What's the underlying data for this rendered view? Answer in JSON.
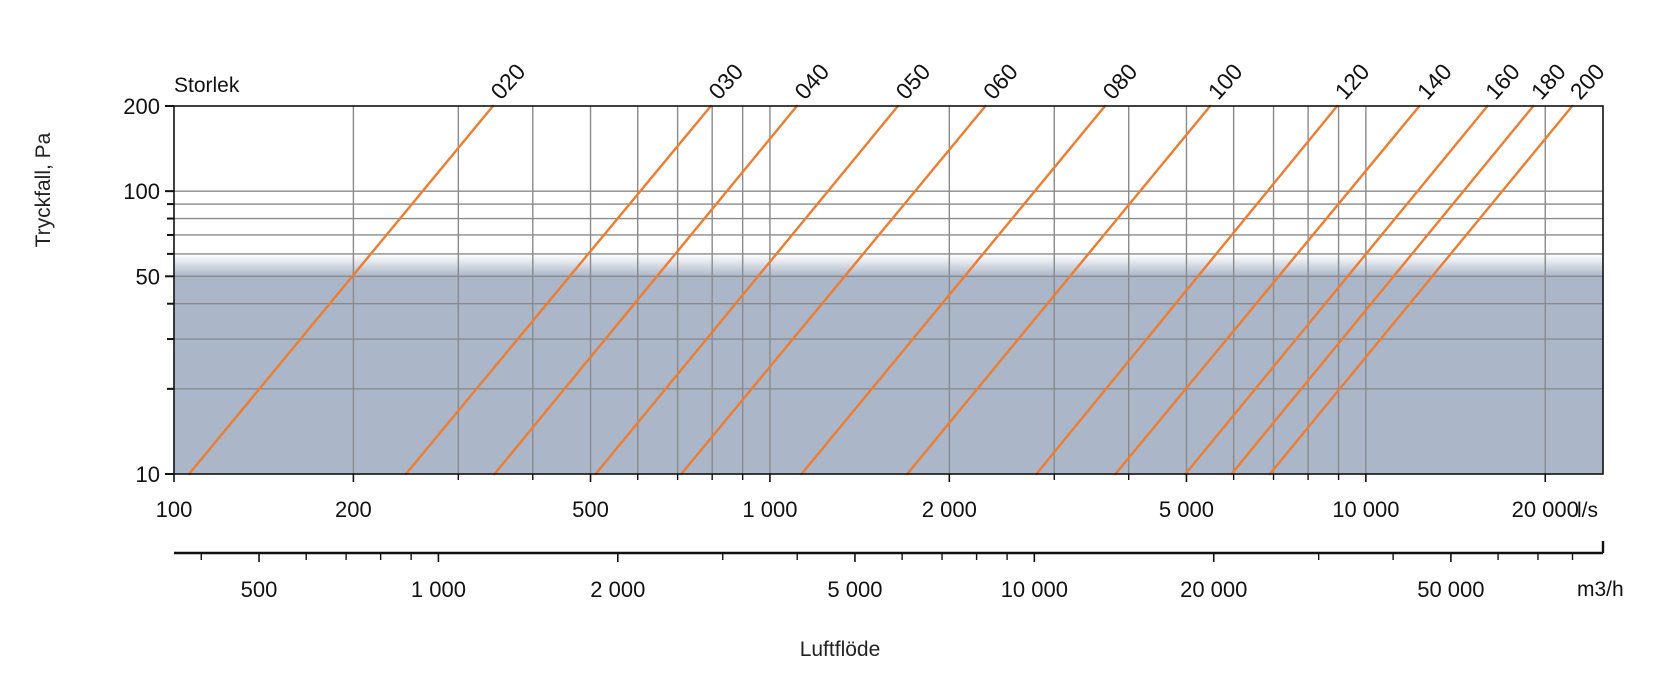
{
  "chart_data": {
    "type": "line",
    "x_scale": "log",
    "y_scale": "log",
    "xlim": [
      100,
      25000
    ],
    "ylim": [
      10,
      200
    ],
    "legend_title": "Storlek",
    "ylabel": "Tryckfall, Pa",
    "xlabel": "Luftflöde",
    "x_unit": "l/s",
    "x2_unit": "m3/h",
    "y_ticks": [
      10,
      50,
      100,
      200
    ],
    "y_tick_labels": [
      "10",
      "50",
      "100",
      "200"
    ],
    "y_minor_ticks": [
      20,
      30,
      40,
      60,
      70,
      80,
      90
    ],
    "x_ticks": [
      100,
      200,
      500,
      1000,
      2000,
      5000,
      10000,
      20000
    ],
    "x_tick_labels": [
      "100",
      "200",
      "500",
      "1 000",
      "2 000",
      "5 000",
      "10 000",
      "20 000"
    ],
    "x_minor_ticks": [
      300,
      400,
      600,
      700,
      800,
      900,
      3000,
      4000,
      6000,
      7000,
      8000,
      9000
    ],
    "x2_ticks": [
      500,
      1000,
      2000,
      5000,
      10000,
      20000,
      50000
    ],
    "x2_tick_labels": [
      "500",
      "1 000",
      "2 000",
      "5 000",
      "10 000",
      "20 000",
      "50 000"
    ],
    "x2_minor_ticks": [
      400,
      600,
      700,
      800,
      900,
      3000,
      4000,
      6000,
      7000,
      8000,
      9000,
      30000,
      40000,
      60000,
      70000,
      80000
    ],
    "shaded_region": {
      "y_from": 10,
      "y_to": 50,
      "color": "#abb6c9"
    },
    "series_color": "#ec7d31",
    "series": [
      {
        "name": "020",
        "x": [
          106,
          343
        ],
        "y": [
          10,
          200
        ]
      },
      {
        "name": "030",
        "x": [
          245,
          796
        ],
        "y": [
          10,
          200
        ]
      },
      {
        "name": "040",
        "x": [
          345,
          1110
        ],
        "y": [
          10,
          200
        ]
      },
      {
        "name": "050",
        "x": [
          510,
          1640
        ],
        "y": [
          10,
          200
        ]
      },
      {
        "name": "060",
        "x": [
          710,
          2300
        ],
        "y": [
          10,
          200
        ]
      },
      {
        "name": "080",
        "x": [
          1130,
          3650
        ],
        "y": [
          10,
          200
        ]
      },
      {
        "name": "100",
        "x": [
          1700,
          5480
        ],
        "y": [
          10,
          200
        ]
      },
      {
        "name": "120",
        "x": [
          2800,
          8950
        ],
        "y": [
          10,
          200
        ]
      },
      {
        "name": "140",
        "x": [
          3800,
          12300
        ],
        "y": [
          10,
          200
        ]
      },
      {
        "name": "160",
        "x": [
          4980,
          16000
        ],
        "y": [
          10,
          200
        ]
      },
      {
        "name": "180",
        "x": [
          5950,
          19100
        ],
        "y": [
          10,
          200
        ]
      },
      {
        "name": "200",
        "x": [
          6900,
          22200
        ],
        "y": [
          10,
          200
        ]
      }
    ]
  }
}
